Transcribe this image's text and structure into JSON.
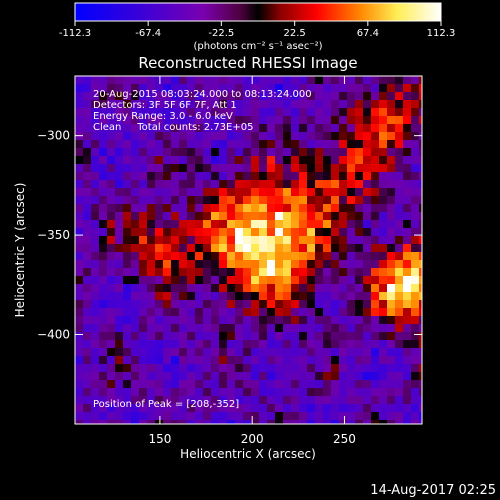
{
  "colorbar": {
    "ticks": [
      "-112.3",
      "-67.4",
      "-22.5",
      "22.5",
      "67.4",
      "112.3"
    ],
    "tick_values": [
      -112.3,
      -67.4,
      -22.5,
      22.5,
      67.4,
      112.3
    ],
    "range": [
      -112.3,
      112.3
    ],
    "units": "(photons cm⁻² s⁻¹ asec⁻²)",
    "colors": [
      "#0000ff",
      "#5a00c0",
      "#8a00a0",
      "#ff0000",
      "#ff9900",
      "#ffff99",
      "#ffffff"
    ]
  },
  "title": "Reconstructed RHESSI Image",
  "info": {
    "line1": "20-Aug-2015 08:03:24.000 to 08:13:24.000",
    "line2": "Detectors: 3F 5F 6F 7F, Att 1",
    "line3": "Energy Range: 3.0 - 6.0 keV",
    "line4": "Clean     Total counts: 2.73E+05",
    "peak": "Position of Peak = [208,-352]"
  },
  "axes": {
    "xlabel": "Heliocentric X (arcsec)",
    "ylabel": "Heliocentric Y (arcsec)",
    "xticks": [
      "150",
      "200",
      "250"
    ],
    "yticks": [
      "-300",
      "-350",
      "-400"
    ],
    "xrange": [
      104,
      292
    ],
    "yrange": [
      -445,
      -270
    ]
  },
  "footer_timestamp": "14-Aug-2017 02:25",
  "chart_data": {
    "type": "heatmap",
    "title": "Reconstructed RHESSI Image",
    "xlabel": "Heliocentric X (arcsec)",
    "ylabel": "Heliocentric Y (arcsec)",
    "xlim": [
      104,
      292
    ],
    "ylim": [
      -445,
      -270
    ],
    "xticks": [
      150,
      200,
      250
    ],
    "yticks": [
      -300,
      -350,
      -400
    ],
    "colorbar_range": [
      -112.3,
      112.3
    ],
    "peak": [
      208,
      -352
    ],
    "sources": [
      {
        "x": 208,
        "y": -352,
        "value": 112.3
      },
      {
        "x": 285,
        "y": -375,
        "value": 100
      },
      {
        "x": 275,
        "y": -290,
        "value": 60
      },
      {
        "x": 150,
        "y": -355,
        "value": 55
      },
      {
        "x": 250,
        "y": -320,
        "value": 45
      }
    ]
  }
}
